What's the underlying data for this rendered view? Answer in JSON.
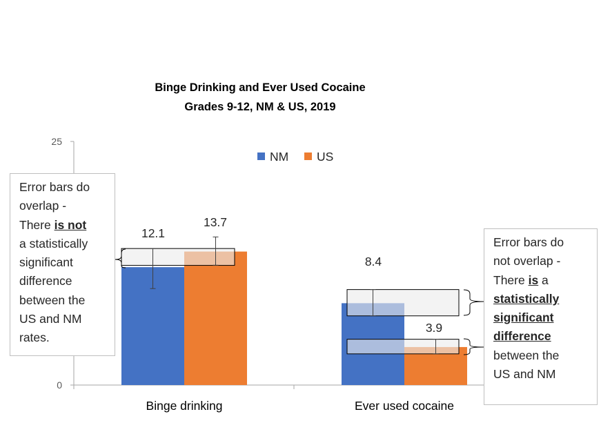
{
  "chart_data": {
    "type": "bar",
    "title": "Binge Drinking and Ever Used Cocaine",
    "subtitle": "Grades 9-12, NM & US, 2019",
    "categories": [
      "Binge drinking",
      "Ever used cocaine"
    ],
    "series": [
      {
        "name": "NM",
        "color": "#4472c4",
        "values": [
          12.1,
          8.4
        ],
        "error_low": [
          9.9,
          7.1
        ],
        "error_high": [
          14.0,
          9.8
        ]
      },
      {
        "name": "US",
        "color": "#ed7d31",
        "values": [
          13.7,
          3.9
        ],
        "error_low": [
          12.3,
          3.2
        ],
        "error_high": [
          15.2,
          4.7
        ]
      }
    ],
    "data_labels": [
      "12.1",
      "13.7",
      "8.4",
      "3.9"
    ],
    "ylim": [
      0,
      25
    ],
    "y_ticks": [
      "0",
      "25"
    ],
    "legend": "top-center",
    "grid": false
  },
  "annotations": {
    "left": {
      "line1": "Error bars do",
      "line2": "overlap -",
      "line3_pre": "There ",
      "line3_em": "is not",
      "line4": "a statistically",
      "line5": "significant",
      "line6": "difference",
      "line7": "between the",
      "line8": "US and NM",
      "line9": "rates."
    },
    "right": {
      "line1": "Error bars do",
      "line2": "not overlap -",
      "line3_pre": "There ",
      "line3_em": "is",
      "line3_post": " a",
      "line4": "statistically",
      "line5": "significant",
      "line6": "difference",
      "line7": "between the",
      "line8": "US and NM"
    }
  }
}
